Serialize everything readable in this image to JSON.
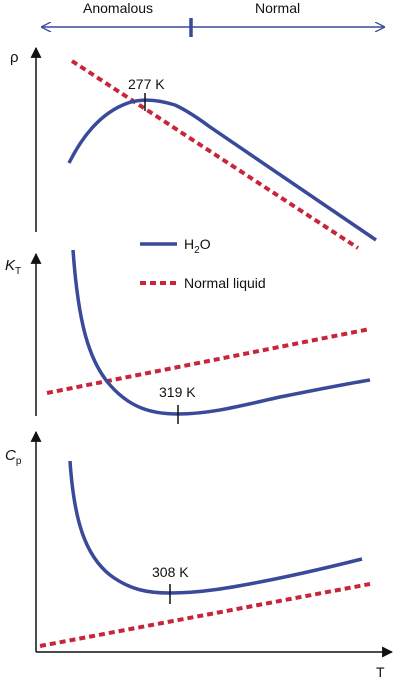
{
  "colors": {
    "h2o": "#3a4a9a",
    "normal": "#c8253a",
    "axis": "#111111",
    "regime": "#3a4a9a"
  },
  "regimes": {
    "anomalous": "Anomalous",
    "normal": "Normal"
  },
  "legend": {
    "h2o_main": "H",
    "h2o_sub": "2",
    "h2o_tail": "O",
    "normal_liquid": "Normal liquid"
  },
  "axes": {
    "x_label": "T",
    "density": {
      "symbol": "ρ"
    },
    "compressibility": {
      "symbol": "K",
      "sub": "T"
    },
    "heat_capacity": {
      "symbol": "C",
      "sub": "p"
    }
  },
  "annotations": {
    "density_extremum": "277 K",
    "compressibility_extremum": "319 K",
    "heat_capacity_extremum": "308 K"
  }
}
